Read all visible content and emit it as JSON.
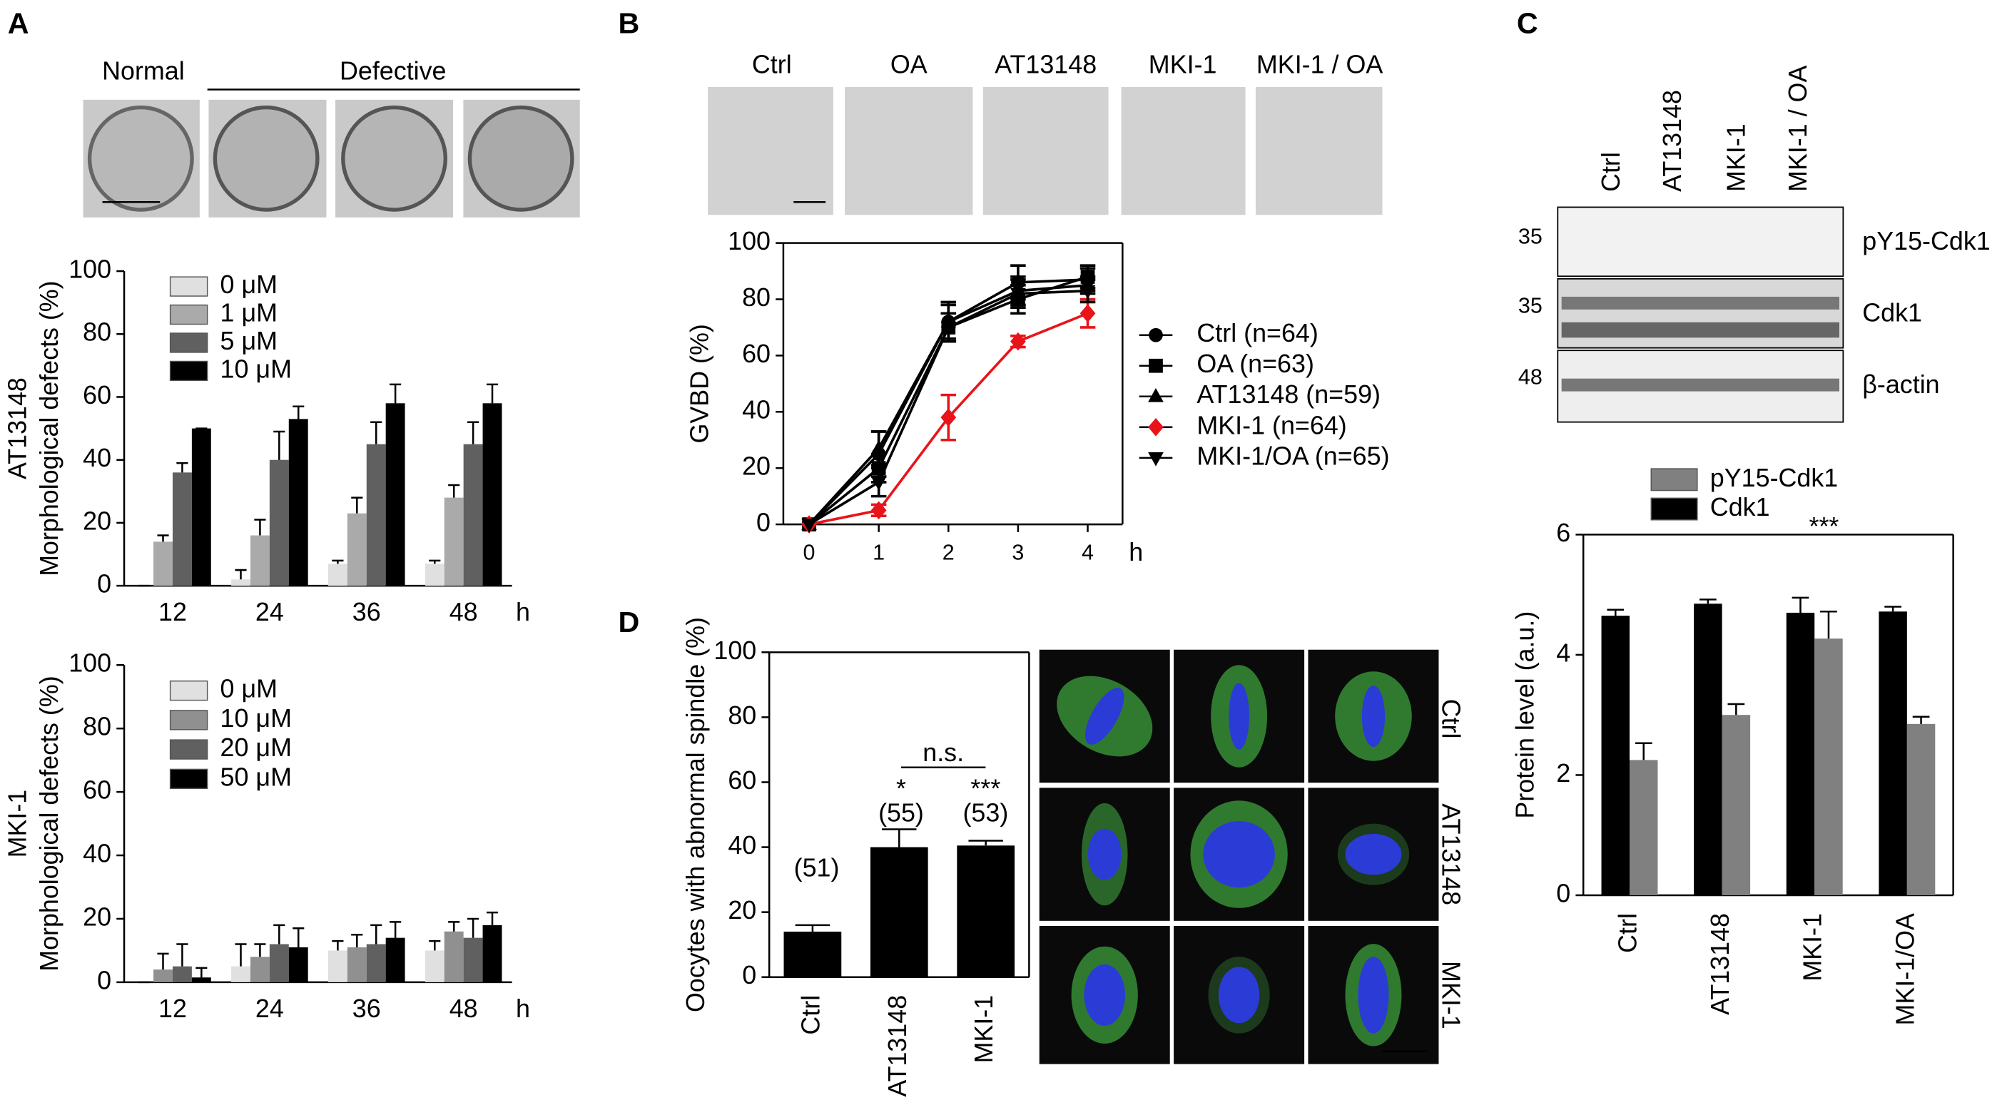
{
  "panels": {
    "A": {
      "letter": "A",
      "labels": [
        "Normal",
        "Defective"
      ]
    },
    "B": {
      "letter": "B",
      "labels": [
        "Ctrl",
        "OA",
        "AT13148",
        "MKI-1",
        "MKI-1 / OA"
      ]
    },
    "C": {
      "letter": "C",
      "lanes": [
        "Ctrl",
        "AT13148",
        "MKI-1",
        "MKI-1 / OA"
      ],
      "bands": [
        "pY15-Cdk1",
        "Cdk1",
        "β-actin"
      ],
      "markers": [
        35,
        35,
        48
      ]
    },
    "D": {
      "letter": "D",
      "rows": [
        "Ctrl",
        "AT13148",
        "MKI-1"
      ]
    }
  },
  "chart_data": [
    {
      "type": "bar",
      "title": "AT13148",
      "ylabel": "Morphological defects (%)",
      "x_unit": "h",
      "categories": [
        "12",
        "24",
        "36",
        "48"
      ],
      "series": [
        {
          "name": "0 μM",
          "color": "#e0e0e0",
          "values": [
            0,
            2,
            7,
            7
          ],
          "errors": [
            0,
            3,
            1,
            1
          ]
        },
        {
          "name": "1 μM",
          "color": "#aaaaaa",
          "values": [
            14,
            16,
            23,
            28
          ],
          "errors": [
            2,
            5,
            5,
            4
          ]
        },
        {
          "name": "5 μM",
          "color": "#606060",
          "values": [
            36,
            40,
            45,
            45
          ],
          "errors": [
            3,
            9,
            7,
            7
          ]
        },
        {
          "name": "10 μM",
          "color": "#000000",
          "values": [
            50,
            53,
            58,
            58
          ],
          "errors": [
            0,
            4,
            6,
            6
          ]
        }
      ],
      "ylim": [
        0,
        100
      ],
      "yticks": [
        0,
        20,
        40,
        60,
        80,
        100
      ]
    },
    {
      "type": "bar",
      "title": "MKI-1",
      "ylabel": "Morphological defects (%)",
      "x_unit": "h",
      "categories": [
        "12",
        "24",
        "36",
        "48"
      ],
      "series": [
        {
          "name": "0 μM",
          "color": "#e0e0e0",
          "values": [
            0,
            5,
            10,
            10
          ],
          "errors": [
            0,
            7,
            3,
            3
          ]
        },
        {
          "name": "10 μM",
          "color": "#909090",
          "values": [
            4,
            8,
            11,
            16
          ],
          "errors": [
            5,
            4,
            4,
            3
          ]
        },
        {
          "name": "20 μM",
          "color": "#606060",
          "values": [
            5,
            12,
            12,
            14
          ],
          "errors": [
            7,
            6,
            6,
            6
          ]
        },
        {
          "name": "50 μM",
          "color": "#000000",
          "values": [
            1.5,
            11,
            14,
            18
          ],
          "errors": [
            3,
            6,
            5,
            4
          ]
        }
      ],
      "ylim": [
        0,
        100
      ],
      "yticks": [
        0,
        20,
        40,
        60,
        80,
        100
      ]
    },
    {
      "type": "line",
      "ylabel": "GVBD (%)",
      "x_unit": "h",
      "x": [
        0,
        1,
        2,
        3,
        4
      ],
      "series": [
        {
          "name": "Ctrl (n=64)",
          "color": "#000000",
          "marker": "circle",
          "values": [
            0,
            25,
            72,
            86,
            87
          ],
          "errors": [
            0,
            8,
            7,
            6,
            4
          ]
        },
        {
          "name": "OA (n=63)",
          "color": "#000000",
          "marker": "square",
          "values": [
            0,
            20,
            70,
            80,
            88
          ],
          "errors": [
            0,
            5,
            5,
            5,
            4
          ]
        },
        {
          "name": "AT13148 (n=59)",
          "color": "#000000",
          "marker": "triangle",
          "values": [
            0,
            27,
            72,
            83,
            85
          ],
          "errors": [
            0,
            6,
            6,
            5,
            3
          ]
        },
        {
          "name": "MKI-1 (n=64)",
          "color": "#e8141a",
          "marker": "diamond",
          "values": [
            0,
            5,
            38,
            65,
            75
          ],
          "errors": [
            0,
            2,
            8,
            2,
            5
          ]
        },
        {
          "name": "MKI-1/OA (n=65)",
          "color": "#000000",
          "marker": "triangle-down",
          "values": [
            0,
            15,
            70,
            82,
            83
          ],
          "errors": [
            0,
            5,
            5,
            5,
            4
          ]
        }
      ],
      "xlim": [
        -0.37,
        4.5
      ],
      "xticks": [
        0,
        1,
        2,
        3,
        4
      ],
      "ylim": [
        0,
        100
      ],
      "yticks": [
        0,
        20,
        40,
        60,
        80,
        100
      ]
    },
    {
      "type": "bar",
      "ylabel": "Protein level (a.u.)",
      "categories": [
        "Ctrl",
        "AT13148",
        "MKI-1",
        "MKI-1/OA"
      ],
      "series": [
        {
          "name": "pY15-Cdk1",
          "color": "#808080",
          "values": [
            2.25,
            3.0,
            4.27,
            2.85
          ],
          "errors": [
            0.28,
            0.18,
            0.45,
            0.12
          ]
        },
        {
          "name": "Cdk1",
          "color": "#000000",
          "values": [
            4.65,
            4.85,
            4.7,
            4.72
          ],
          "errors": [
            0.1,
            0.07,
            0.25,
            0.08
          ]
        }
      ],
      "annotations": [
        "***"
      ],
      "ylim": [
        0,
        6
      ],
      "yticks": [
        0,
        2,
        4,
        6
      ]
    },
    {
      "type": "bar",
      "ylabel": "Oocytes with abnormal spindle (%)",
      "categories": [
        "Ctrl",
        "AT13148",
        "MKI-1"
      ],
      "values": [
        14,
        40,
        40.5
      ],
      "errors": [
        2,
        5.5,
        1.5
      ],
      "color": "#000000",
      "annotations": [
        "(51)",
        "(55)",
        "(53)",
        "*",
        "***",
        "n.s."
      ],
      "ylim": [
        0,
        100
      ],
      "yticks": [
        0,
        20,
        40,
        60,
        80,
        100
      ]
    }
  ]
}
